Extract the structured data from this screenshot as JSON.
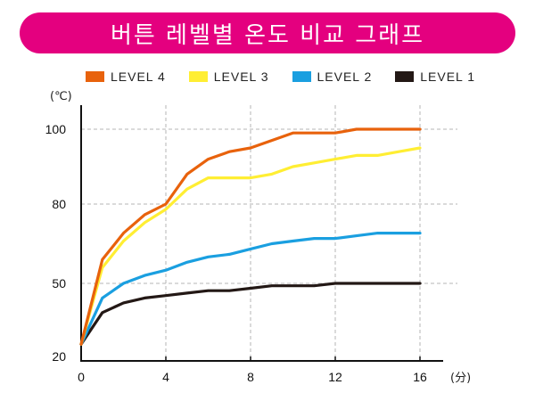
{
  "header": {
    "title": "버튼 레벨별 온도 비교 그래프",
    "background": "#e4007f"
  },
  "chart_data": {
    "type": "line",
    "title": "버튼 레벨별 온도 비교 그래프",
    "xlabel": "(分)",
    "ylabel": "(℃)",
    "x_ticks": [
      0,
      4,
      8,
      12,
      16
    ],
    "y_ticks": [
      20,
      50,
      80,
      100
    ],
    "xlim": [
      0,
      17
    ],
    "grid": true,
    "legend_position": "top",
    "x": [
      0,
      1,
      2,
      3,
      4,
      5,
      6,
      7,
      8,
      9,
      10,
      11,
      12,
      13,
      14,
      15,
      16
    ],
    "series": [
      {
        "name": "LEVEL 4",
        "color": "#e8620c",
        "values": [
          25,
          59,
          69,
          76,
          80,
          88,
          92,
          94,
          95,
          97,
          99,
          99,
          99,
          100,
          100,
          100,
          100
        ]
      },
      {
        "name": "LEVEL 3",
        "color": "#ffee33",
        "values": [
          25,
          56,
          66,
          73,
          78,
          84,
          87,
          87,
          87,
          88,
          90,
          91,
          92,
          93,
          93,
          94,
          95
        ]
      },
      {
        "name": "LEVEL 2",
        "color": "#1a9fe0",
        "values": [
          25,
          44,
          50,
          53,
          55,
          58,
          60,
          61,
          63,
          65,
          66,
          67,
          67,
          68,
          69,
          69,
          69
        ]
      },
      {
        "name": "LEVEL 1",
        "color": "#231815",
        "values": [
          25,
          38,
          42,
          44,
          45,
          46,
          47,
          47,
          48,
          49,
          49,
          49,
          50,
          50,
          50,
          50,
          50
        ]
      }
    ]
  }
}
